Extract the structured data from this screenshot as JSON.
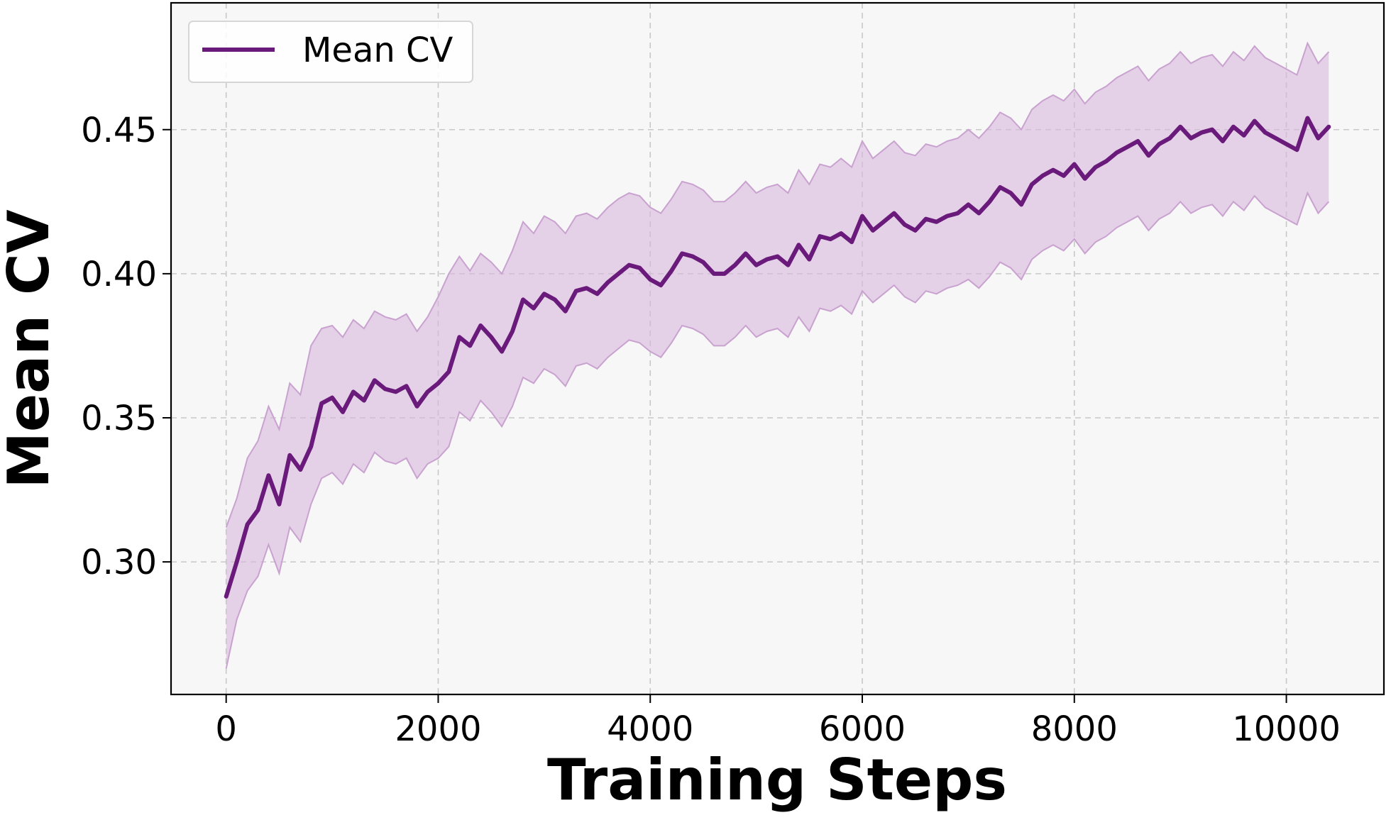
{
  "chart_data": {
    "type": "line",
    "title": "",
    "xlabel": "Training Steps",
    "ylabel": "Mean CV",
    "xlim": [
      -520,
      10920
    ],
    "ylim": [
      0.254,
      0.494
    ],
    "x_ticks": [
      0,
      2000,
      4000,
      6000,
      8000,
      10000
    ],
    "x_tick_labels": [
      "0",
      "2000",
      "4000",
      "6000",
      "8000",
      "10000"
    ],
    "y_ticks": [
      0.3,
      0.35,
      0.4,
      0.45
    ],
    "y_tick_labels": [
      "0.30",
      "0.35",
      "0.40",
      "0.45"
    ],
    "grid": true,
    "legend_position": "top-left",
    "colors": {
      "line": "#6a1a7a",
      "band": "#d7b8dc",
      "band_edge": "#c9a2d0",
      "plot_background": "#f7f7f7"
    },
    "series": [
      {
        "name": "Mean CV",
        "x": [
          0,
          100,
          200,
          300,
          400,
          500,
          600,
          700,
          800,
          900,
          1000,
          1100,
          1200,
          1300,
          1400,
          1500,
          1600,
          1700,
          1800,
          1900,
          2000,
          2100,
          2200,
          2300,
          2400,
          2500,
          2600,
          2700,
          2800,
          2900,
          3000,
          3100,
          3200,
          3300,
          3400,
          3500,
          3600,
          3700,
          3800,
          3900,
          4000,
          4100,
          4200,
          4300,
          4400,
          4500,
          4600,
          4700,
          4800,
          4900,
          5000,
          5100,
          5200,
          5300,
          5400,
          5500,
          5600,
          5700,
          5800,
          5900,
          6000,
          6100,
          6200,
          6300,
          6400,
          6500,
          6600,
          6700,
          6800,
          6900,
          7000,
          7100,
          7200,
          7300,
          7400,
          7500,
          7600,
          7700,
          7800,
          7900,
          8000,
          8100,
          8200,
          8300,
          8400,
          8500,
          8600,
          8700,
          8800,
          8900,
          9000,
          9100,
          9200,
          9300,
          9400,
          9500,
          9600,
          9700,
          9800,
          9900,
          10000,
          10100,
          10200,
          10300,
          10400
        ],
        "y": [
          0.288,
          0.3,
          0.313,
          0.318,
          0.33,
          0.32,
          0.337,
          0.332,
          0.34,
          0.355,
          0.357,
          0.352,
          0.359,
          0.356,
          0.363,
          0.36,
          0.359,
          0.361,
          0.354,
          0.359,
          0.362,
          0.366,
          0.378,
          0.375,
          0.382,
          0.378,
          0.373,
          0.38,
          0.391,
          0.388,
          0.393,
          0.391,
          0.387,
          0.394,
          0.395,
          0.393,
          0.397,
          0.4,
          0.403,
          0.402,
          0.398,
          0.396,
          0.401,
          0.407,
          0.406,
          0.404,
          0.4,
          0.4,
          0.403,
          0.407,
          0.403,
          0.405,
          0.406,
          0.403,
          0.41,
          0.405,
          0.413,
          0.412,
          0.414,
          0.411,
          0.42,
          0.415,
          0.418,
          0.421,
          0.417,
          0.415,
          0.419,
          0.418,
          0.42,
          0.421,
          0.424,
          0.421,
          0.425,
          0.43,
          0.428,
          0.424,
          0.431,
          0.434,
          0.436,
          0.434,
          0.438,
          0.433,
          0.437,
          0.439,
          0.442,
          0.444,
          0.446,
          0.441,
          0.445,
          0.447,
          0.451,
          0.447,
          0.449,
          0.45,
          0.446,
          0.451,
          0.448,
          0.453,
          0.449,
          0.447,
          0.445,
          0.443,
          0.454,
          0.447,
          0.451
        ]
      }
    ],
    "band": {
      "x": [
        0,
        100,
        200,
        300,
        400,
        500,
        600,
        700,
        800,
        900,
        1000,
        1100,
        1200,
        1300,
        1400,
        1500,
        1600,
        1700,
        1800,
        1900,
        2000,
        2100,
        2200,
        2300,
        2400,
        2500,
        2600,
        2700,
        2800,
        2900,
        3000,
        3100,
        3200,
        3300,
        3400,
        3500,
        3600,
        3700,
        3800,
        3900,
        4000,
        4100,
        4200,
        4300,
        4400,
        4500,
        4600,
        4700,
        4800,
        4900,
        5000,
        5100,
        5200,
        5300,
        5400,
        5500,
        5600,
        5700,
        5800,
        5900,
        6000,
        6100,
        6200,
        6300,
        6400,
        6500,
        6600,
        6700,
        6800,
        6900,
        7000,
        7100,
        7200,
        7300,
        7400,
        7500,
        7600,
        7700,
        7800,
        7900,
        8000,
        8100,
        8200,
        8300,
        8400,
        8500,
        8600,
        8700,
        8800,
        8900,
        9000,
        9100,
        9200,
        9300,
        9400,
        9500,
        9600,
        9700,
        9800,
        9900,
        10000,
        10100,
        10200,
        10300,
        10400
      ],
      "upper": [
        0.312,
        0.322,
        0.336,
        0.342,
        0.354,
        0.346,
        0.362,
        0.358,
        0.375,
        0.381,
        0.382,
        0.378,
        0.384,
        0.381,
        0.387,
        0.385,
        0.384,
        0.386,
        0.38,
        0.385,
        0.392,
        0.4,
        0.406,
        0.401,
        0.407,
        0.404,
        0.4,
        0.408,
        0.418,
        0.414,
        0.42,
        0.418,
        0.414,
        0.42,
        0.421,
        0.419,
        0.423,
        0.426,
        0.428,
        0.427,
        0.423,
        0.421,
        0.426,
        0.432,
        0.431,
        0.429,
        0.425,
        0.425,
        0.428,
        0.432,
        0.428,
        0.43,
        0.431,
        0.428,
        0.436,
        0.431,
        0.438,
        0.437,
        0.44,
        0.437,
        0.446,
        0.44,
        0.443,
        0.446,
        0.442,
        0.441,
        0.445,
        0.444,
        0.446,
        0.447,
        0.45,
        0.447,
        0.451,
        0.456,
        0.454,
        0.45,
        0.457,
        0.46,
        0.462,
        0.46,
        0.464,
        0.459,
        0.463,
        0.465,
        0.468,
        0.47,
        0.472,
        0.467,
        0.471,
        0.473,
        0.477,
        0.473,
        0.475,
        0.476,
        0.472,
        0.477,
        0.474,
        0.479,
        0.475,
        0.473,
        0.471,
        0.469,
        0.48,
        0.473,
        0.477
      ],
      "lower": [
        0.263,
        0.28,
        0.29,
        0.295,
        0.306,
        0.296,
        0.312,
        0.307,
        0.32,
        0.329,
        0.331,
        0.327,
        0.334,
        0.331,
        0.338,
        0.335,
        0.334,
        0.336,
        0.329,
        0.334,
        0.336,
        0.34,
        0.352,
        0.349,
        0.356,
        0.352,
        0.347,
        0.354,
        0.364,
        0.362,
        0.367,
        0.365,
        0.361,
        0.368,
        0.369,
        0.367,
        0.371,
        0.374,
        0.377,
        0.376,
        0.373,
        0.371,
        0.376,
        0.382,
        0.381,
        0.379,
        0.375,
        0.375,
        0.378,
        0.382,
        0.378,
        0.38,
        0.381,
        0.378,
        0.385,
        0.38,
        0.388,
        0.387,
        0.389,
        0.386,
        0.394,
        0.39,
        0.393,
        0.396,
        0.392,
        0.39,
        0.394,
        0.393,
        0.395,
        0.396,
        0.398,
        0.395,
        0.399,
        0.404,
        0.402,
        0.398,
        0.405,
        0.408,
        0.41,
        0.408,
        0.412,
        0.407,
        0.411,
        0.413,
        0.416,
        0.418,
        0.42,
        0.415,
        0.419,
        0.421,
        0.425,
        0.421,
        0.423,
        0.424,
        0.42,
        0.425,
        0.422,
        0.427,
        0.423,
        0.421,
        0.419,
        0.417,
        0.428,
        0.421,
        0.425
      ]
    }
  }
}
